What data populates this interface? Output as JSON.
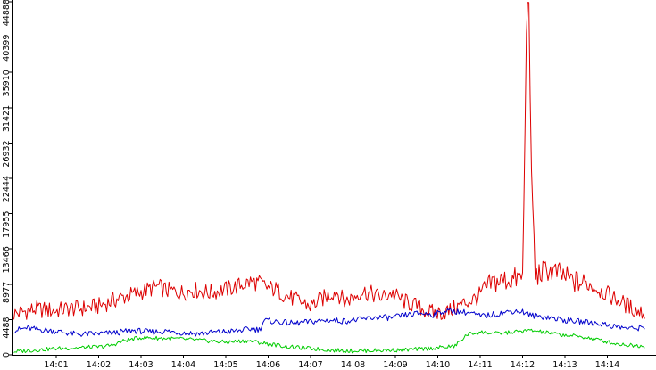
{
  "chart_data": {
    "type": "line",
    "title": "",
    "xlabel": "",
    "ylabel": "",
    "legend": "none",
    "grid": false,
    "x_tick_labels": [
      "14:01",
      "14:02",
      "14:03",
      "14:04",
      "14:05",
      "14:06",
      "14:07",
      "14:08",
      "14:09",
      "14:10",
      "14:11",
      "14:12",
      "14:13",
      "14:14"
    ],
    "y_tick_labels": [
      "0",
      "4488",
      "8977",
      "13466",
      "17955",
      "22444",
      "26932",
      "31421",
      "35910",
      "40399",
      "44888"
    ],
    "xlim": [
      0,
      14.9
    ],
    "ylim": [
      0,
      44888
    ],
    "x_unit_note": "minutes after 14:00",
    "series": [
      {
        "color": "#dd0000",
        "points": [
          [
            0.0,
            5200
          ],
          [
            0.5,
            5800
          ],
          [
            1.0,
            5600
          ],
          [
            1.3,
            5900
          ],
          [
            1.6,
            5900
          ],
          [
            2.0,
            6200
          ],
          [
            2.5,
            7200
          ],
          [
            3.0,
            8000
          ],
          [
            3.4,
            8700
          ],
          [
            3.6,
            8200
          ],
          [
            4.0,
            7900
          ],
          [
            4.2,
            8300
          ],
          [
            4.6,
            7900
          ],
          [
            4.9,
            8200
          ],
          [
            5.2,
            8600
          ],
          [
            5.6,
            9300
          ],
          [
            5.8,
            9100
          ],
          [
            6.0,
            8500
          ],
          [
            6.2,
            8300
          ],
          [
            6.4,
            7600
          ],
          [
            6.6,
            7100
          ],
          [
            7.0,
            6200
          ],
          [
            7.2,
            6900
          ],
          [
            7.4,
            7500
          ],
          [
            7.6,
            8100
          ],
          [
            7.8,
            6800
          ],
          [
            8.0,
            7300
          ],
          [
            8.2,
            8100
          ],
          [
            8.4,
            7800
          ],
          [
            8.7,
            7300
          ],
          [
            8.9,
            7900
          ],
          [
            9.2,
            6800
          ],
          [
            9.5,
            6200
          ],
          [
            9.8,
            5400
          ],
          [
            10.0,
            5300
          ],
          [
            10.3,
            5600
          ],
          [
            10.6,
            6500
          ],
          [
            10.9,
            7200
          ],
          [
            11.1,
            8100
          ],
          [
            11.3,
            9200
          ],
          [
            11.6,
            9500
          ],
          [
            11.8,
            9600
          ],
          [
            12.0,
            9800
          ],
          [
            12.05,
            25000
          ],
          [
            12.1,
            44800
          ],
          [
            12.15,
            44800
          ],
          [
            12.2,
            25000
          ],
          [
            12.3,
            10000
          ],
          [
            12.6,
            10800
          ],
          [
            12.9,
            10200
          ],
          [
            13.2,
            9300
          ],
          [
            13.6,
            8900
          ],
          [
            13.9,
            8000
          ],
          [
            14.1,
            7400
          ],
          [
            14.4,
            6500
          ],
          [
            14.7,
            5600
          ],
          [
            14.9,
            5300
          ]
        ]
      },
      {
        "color": "#0000cc",
        "points": [
          [
            0.0,
            3100
          ],
          [
            0.3,
            3400
          ],
          [
            0.6,
            3200
          ],
          [
            1.0,
            3000
          ],
          [
            1.5,
            2600
          ],
          [
            2.0,
            2700
          ],
          [
            2.4,
            2800
          ],
          [
            2.8,
            3100
          ],
          [
            3.2,
            2900
          ],
          [
            3.6,
            3000
          ],
          [
            4.0,
            2800
          ],
          [
            4.4,
            2700
          ],
          [
            4.8,
            2900
          ],
          [
            5.2,
            3000
          ],
          [
            5.6,
            3300
          ],
          [
            5.8,
            3200
          ],
          [
            5.9,
            4400
          ],
          [
            6.2,
            4200
          ],
          [
            6.6,
            4000
          ],
          [
            7.0,
            4200
          ],
          [
            7.4,
            4400
          ],
          [
            7.8,
            4300
          ],
          [
            8.2,
            4500
          ],
          [
            8.6,
            4800
          ],
          [
            8.9,
            4700
          ],
          [
            9.2,
            5000
          ],
          [
            9.6,
            5300
          ],
          [
            9.9,
            5100
          ],
          [
            10.2,
            5600
          ],
          [
            10.5,
            5500
          ],
          [
            10.8,
            5300
          ],
          [
            11.0,
            4900
          ],
          [
            11.4,
            5200
          ],
          [
            11.8,
            5600
          ],
          [
            12.0,
            5500
          ],
          [
            12.2,
            5000
          ],
          [
            12.6,
            4800
          ],
          [
            13.0,
            4400
          ],
          [
            13.4,
            4200
          ],
          [
            13.8,
            4000
          ],
          [
            14.2,
            3600
          ],
          [
            14.6,
            3300
          ],
          [
            14.9,
            3600
          ]
        ]
      },
      {
        "color": "#00cc00",
        "points": [
          [
            0.0,
            400
          ],
          [
            0.5,
            600
          ],
          [
            1.0,
            800
          ],
          [
            1.5,
            900
          ],
          [
            2.0,
            1000
          ],
          [
            2.3,
            1200
          ],
          [
            2.6,
            1800
          ],
          [
            3.0,
            2200
          ],
          [
            3.5,
            2100
          ],
          [
            4.0,
            2000
          ],
          [
            4.5,
            1800
          ],
          [
            5.0,
            1600
          ],
          [
            5.5,
            1800
          ],
          [
            6.0,
            1400
          ],
          [
            6.5,
            1000
          ],
          [
            7.0,
            800
          ],
          [
            7.5,
            600
          ],
          [
            8.0,
            500
          ],
          [
            8.5,
            550
          ],
          [
            9.0,
            600
          ],
          [
            9.5,
            700
          ],
          [
            10.0,
            900
          ],
          [
            10.4,
            1100
          ],
          [
            10.7,
            2600
          ],
          [
            11.0,
            2900
          ],
          [
            11.4,
            2700
          ],
          [
            11.8,
            2900
          ],
          [
            12.2,
            3100
          ],
          [
            12.6,
            2800
          ],
          [
            13.0,
            2500
          ],
          [
            13.4,
            2300
          ],
          [
            13.8,
            1900
          ],
          [
            14.2,
            1400
          ],
          [
            14.6,
            1200
          ],
          [
            14.9,
            1100
          ]
        ]
      }
    ]
  }
}
